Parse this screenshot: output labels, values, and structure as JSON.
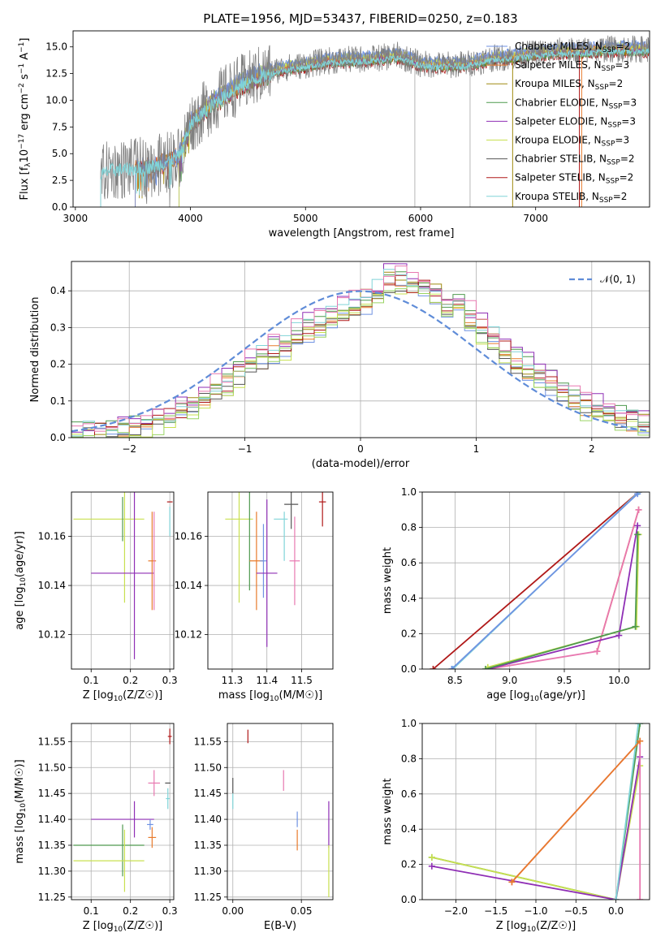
{
  "figure_title": "PLATE=1956, MJD=53437, FIBERID=0250, z=0.183",
  "colors": {
    "Chabrier MILES": "#6f92e2",
    "Salpeter MILES": "#e87b2c",
    "Kroupa MILES": "#a08a10",
    "Chabrier ELODIE": "#4f9a4f",
    "Salpeter ELODIE": "#8f2fb5",
    "Kroupa ELODIE": "#c8e050",
    "Chabrier STELIB": "#555555",
    "Salpeter STELIB": "#b01818",
    "Kroupa STELIB": "#80d4d8",
    "extra1": "#e878b0",
    "extra2": "#9ad464",
    "data": "#808080",
    "gauss": "#5f8cd8"
  },
  "chart_data": [
    {
      "id": "spectrum",
      "type": "line",
      "xlabel": "wavelength [Angstrom, rest frame]",
      "ylabel": "Flux [f",
      "ylabel_full": "Flux [f_λ 10^-17 erg cm^-2 s^-1 A^-1]",
      "xlim": [
        2980,
        7990
      ],
      "ylim": [
        0,
        16.5
      ],
      "xticks": [
        3000,
        4000,
        5000,
        6000,
        7000
      ],
      "yticks": [
        0.0,
        2.5,
        5.0,
        7.5,
        10.0,
        12.5,
        15.0
      ],
      "ytick_labels": [
        "0.0",
        "2.5",
        "5.0",
        "7.5",
        "10.0",
        "12.5",
        "15.0"
      ],
      "spectrum_knots_x": [
        3220,
        3300,
        3500,
        3700,
        3900,
        4000,
        4200,
        4400,
        4600,
        4800,
        5000,
        5200,
        5400,
        5600,
        5800,
        6000,
        6200,
        6400,
        6600,
        6800,
        7000,
        7200,
        7400,
        7600
      ],
      "spectrum_knots_y": [
        3.0,
        3.5,
        3.6,
        3.9,
        4.8,
        7.8,
        9.8,
        11.3,
        12.3,
        13.0,
        13.3,
        13.7,
        13.8,
        13.9,
        14.2,
        13.4,
        13.3,
        13.4,
        13.9,
        14.1,
        14.4,
        14.6,
        14.6,
        14.8
      ],
      "legend_position": "upper right",
      "legend": [
        {
          "label": "Chabrier MILES, N",
          "sub": "SSP",
          "post": "=2",
          "color": "Chabrier MILES"
        },
        {
          "label": "Salpeter MILES, N",
          "sub": "SSP",
          "post": "=3",
          "color": "Salpeter MILES"
        },
        {
          "label": "Kroupa MILES, N",
          "sub": "SSP",
          "post": "=2",
          "color": "Kroupa MILES"
        },
        {
          "label": "Chabrier ELODIE, N",
          "sub": "SSP",
          "post": "=3",
          "color": "Chabrier ELODIE"
        },
        {
          "label": "Salpeter ELODIE, N",
          "sub": "SSP",
          "post": "=3",
          "color": "Salpeter ELODIE"
        },
        {
          "label": "Kroupa ELODIE, N",
          "sub": "SSP",
          "post": "=3",
          "color": "Kroupa ELODIE"
        },
        {
          "label": "Chabrier STELIB, N",
          "sub": "SSP",
          "post": "=2",
          "color": "Chabrier STELIB"
        },
        {
          "label": "Salpeter STELIB, N",
          "sub": "SSP",
          "post": "=2",
          "color": "Salpeter STELIB"
        },
        {
          "label": "Kroupa STELIB, N",
          "sub": "SSP",
          "post": "=2",
          "color": "Kroupa STELIB"
        }
      ]
    },
    {
      "id": "residuals",
      "type": "line",
      "xlabel": "(data-model)/error",
      "ylabel": "Normed distribution",
      "xlim": [
        -2.5,
        2.5
      ],
      "ylim": [
        0,
        0.48
      ],
      "xticks": [
        -2,
        -1,
        0,
        1,
        2
      ],
      "xtick_labels": [
        "−2",
        "−1",
        "0",
        "1",
        "2"
      ],
      "yticks": [
        0.0,
        0.1,
        0.2,
        0.3,
        0.4
      ],
      "ytick_labels": [
        "0.0",
        "0.1",
        "0.2",
        "0.3",
        "0.4"
      ],
      "grid": true,
      "legend_label": "𝒩(0, 1)",
      "bin_width": 0.1,
      "base_centers": [
        -2.45,
        -2.35,
        -2.25,
        -2.15,
        -2.05,
        -1.95,
        -1.85,
        -1.75,
        -1.65,
        -1.55,
        -1.45,
        -1.35,
        -1.25,
        -1.15,
        -1.05,
        -0.95,
        -0.85,
        -0.75,
        -0.65,
        -0.55,
        -0.45,
        -0.35,
        -0.25,
        -0.15,
        -0.05,
        0.05,
        0.15,
        0.25,
        0.35,
        0.45,
        0.55,
        0.65,
        0.75,
        0.85,
        0.95,
        1.05,
        1.15,
        1.25,
        1.35,
        1.45,
        1.55,
        1.65,
        1.75,
        1.85,
        1.95,
        2.05,
        2.15,
        2.25,
        2.35,
        2.45
      ],
      "base_values": [
        0.01,
        0.012,
        0.015,
        0.02,
        0.03,
        0.035,
        0.04,
        0.05,
        0.055,
        0.07,
        0.09,
        0.11,
        0.13,
        0.15,
        0.18,
        0.21,
        0.22,
        0.24,
        0.25,
        0.28,
        0.3,
        0.31,
        0.33,
        0.34,
        0.36,
        0.38,
        0.4,
        0.41,
        0.41,
        0.4,
        0.39,
        0.38,
        0.37,
        0.36,
        0.33,
        0.3,
        0.27,
        0.24,
        0.21,
        0.19,
        0.17,
        0.15,
        0.12,
        0.1,
        0.09,
        0.08,
        0.07,
        0.06,
        0.05,
        0.04
      ]
    },
    {
      "id": "age_vs_Z",
      "type": "scatter",
      "xlabel": "Z [log",
      "ylabel": "age  [log",
      "xlim": [
        0.05,
        0.31
      ],
      "ylim": [
        10.106,
        10.178
      ],
      "xticks": [
        0.1,
        0.2,
        0.3
      ],
      "xtick_labels": [
        "0.1",
        "0.2",
        "0.3"
      ],
      "yticks": [
        10.12,
        10.14,
        10.16
      ],
      "ytick_labels": [
        "10.12",
        "10.14",
        "10.16"
      ],
      "points": [
        {
          "x": 0.145,
          "y": 10.167,
          "xerr": 0.09,
          "yerr": 0.0,
          "color": "Kroupa ELODIE"
        },
        {
          "x": 0.18,
          "y": 10.167,
          "xerr": 0.0,
          "yerr": 0.009,
          "color": "Chabrier ELODIE"
        },
        {
          "x": 0.185,
          "y": 10.158,
          "xerr": 0.0,
          "yerr": 0.025,
          "color": "Kroupa ELODIE"
        },
        {
          "x": 0.18,
          "y": 10.145,
          "xerr": 0.08,
          "yerr": 0.0,
          "color": "Salpeter ELODIE"
        },
        {
          "x": 0.21,
          "y": 10.145,
          "xerr": 0.0,
          "yerr": 0.035,
          "color": "Salpeter ELODIE"
        },
        {
          "x": 0.255,
          "y": 10.15,
          "xerr": 0.01,
          "yerr": 0.02,
          "color": "Salpeter MILES"
        },
        {
          "x": 0.26,
          "y": 10.15,
          "xerr": 0.0,
          "yerr": 0.02,
          "color": "extra1"
        },
        {
          "x": 0.3,
          "y": 10.174,
          "xerr": 0.007,
          "yerr": 0.0,
          "color": "Salpeter STELIB"
        },
        {
          "x": 0.3,
          "y": 10.166,
          "xerr": 0.0,
          "yerr": 0.006,
          "color": "Kroupa STELIB"
        }
      ]
    },
    {
      "id": "age_vs_mass",
      "type": "scatter",
      "xlabel": "mass [log",
      "ylabel": "",
      "xlim": [
        11.23,
        11.59
      ],
      "ylim": [
        10.106,
        10.178
      ],
      "xticks": [
        11.3,
        11.4,
        11.5
      ],
      "xtick_labels": [
        "11.3",
        "11.4",
        "11.5"
      ],
      "yticks": [
        10.12,
        10.14,
        10.16
      ],
      "ytick_labels": [
        "10.12",
        "10.14",
        "10.16"
      ],
      "points": [
        {
          "x": 11.32,
          "y": 10.167,
          "xerr": 0.04,
          "yerr": 0.0,
          "color": "Kroupa ELODIE"
        },
        {
          "x": 11.32,
          "y": 10.158,
          "xerr": 0.0,
          "yerr": 0.025,
          "color": "Kroupa ELODIE"
        },
        {
          "x": 11.35,
          "y": 10.158,
          "xerr": 0.0,
          "yerr": 0.02,
          "color": "Chabrier ELODIE"
        },
        {
          "x": 11.37,
          "y": 10.15,
          "xerr": 0.02,
          "yerr": 0.02,
          "color": "Salpeter MILES"
        },
        {
          "x": 11.39,
          "y": 10.15,
          "xerr": 0.01,
          "yerr": 0.015,
          "color": "Chabrier MILES"
        },
        {
          "x": 11.4,
          "y": 10.145,
          "xerr": 0.03,
          "yerr": 0.03,
          "color": "Salpeter ELODIE"
        },
        {
          "x": 11.44,
          "y": 10.167,
          "xerr": 0.02,
          "yerr": 0.0,
          "color": "Kroupa STELIB"
        },
        {
          "x": 11.47,
          "y": 10.173,
          "xerr": 0.02,
          "yerr": 0.01,
          "color": "Chabrier STELIB"
        },
        {
          "x": 11.48,
          "y": 10.15,
          "xerr": 0.015,
          "yerr": 0.018,
          "color": "extra1"
        },
        {
          "x": 11.56,
          "y": 10.174,
          "xerr": 0.01,
          "yerr": 0.01,
          "color": "Salpeter STELIB"
        },
        {
          "x": 11.45,
          "y": 10.16,
          "xerr": 0.0,
          "yerr": 0.01,
          "color": "Kroupa STELIB"
        }
      ]
    },
    {
      "id": "mass_weight_vs_age",
      "type": "line",
      "xlabel": "age  [log",
      "ylabel": "mass weight",
      "xlim": [
        8.2,
        10.28
      ],
      "ylim": [
        0,
        1.0
      ],
      "xticks": [
        8.5,
        9.0,
        9.5,
        10.0
      ],
      "xtick_labels": [
        "8.5",
        "9.0",
        "9.5",
        "10.0"
      ],
      "yticks": [
        0.0,
        0.2,
        0.4,
        0.6,
        0.8,
        1.0
      ],
      "ytick_labels": [
        "0.0",
        "0.2",
        "0.4",
        "0.6",
        "0.8",
        "1.0"
      ],
      "grid": true,
      "series": [
        {
          "color": "Salpeter STELIB",
          "x": [
            8.3,
            10.18
          ],
          "y": [
            0.0,
            1.0
          ]
        },
        {
          "color": "Kroupa STELIB",
          "x": [
            8.48,
            10.18
          ],
          "y": [
            0.0,
            1.0
          ]
        },
        {
          "color": "Chabrier MILES",
          "x": [
            8.47,
            10.17
          ],
          "y": [
            0.0,
            0.99
          ]
        },
        {
          "color": "Salpeter MILES",
          "x": [
            9.8,
            10.18
          ],
          "y": [
            0.1,
            0.9
          ]
        },
        {
          "color": "extra1",
          "x": [
            8.8,
            9.8,
            10.18
          ],
          "y": [
            0.0,
            0.1,
            0.9
          ]
        },
        {
          "color": "Salpeter ELODIE",
          "x": [
            8.8,
            10.0,
            10.17
          ],
          "y": [
            0.0,
            0.19,
            0.81
          ]
        },
        {
          "color": "Kroupa ELODIE",
          "x": [
            8.8,
            10.16,
            10.18
          ],
          "y": [
            0.01,
            0.24,
            0.76
          ]
        },
        {
          "color": "Chabrier ELODIE",
          "x": [
            8.78,
            10.15,
            10.17
          ],
          "y": [
            0.0,
            0.24,
            0.76
          ]
        }
      ]
    },
    {
      "id": "mass_vs_Z",
      "type": "scatter",
      "xlabel": "Z [log",
      "ylabel": "mass [log",
      "xlim": [
        0.05,
        0.31
      ],
      "ylim": [
        11.245,
        11.585
      ],
      "xticks": [
        0.1,
        0.2,
        0.3
      ],
      "xtick_labels": [
        "0.1",
        "0.2",
        "0.3"
      ],
      "yticks": [
        11.25,
        11.3,
        11.35,
        11.4,
        11.45,
        11.5,
        11.55
      ],
      "ytick_labels": [
        "11.25",
        "11.30",
        "11.35",
        "11.40",
        "11.45",
        "11.50",
        "11.55"
      ],
      "points": [
        {
          "x": 0.145,
          "y": 11.35,
          "xerr": 0.09,
          "yerr": 0.0,
          "color": "Chabrier ELODIE"
        },
        {
          "x": 0.18,
          "y": 11.34,
          "xerr": 0.0,
          "yerr": 0.05,
          "color": "Chabrier ELODIE"
        },
        {
          "x": 0.145,
          "y": 11.32,
          "xerr": 0.09,
          "yerr": 0.0,
          "color": "Kroupa ELODIE"
        },
        {
          "x": 0.185,
          "y": 11.32,
          "xerr": 0.0,
          "yerr": 0.06,
          "color": "Kroupa ELODIE"
        },
        {
          "x": 0.18,
          "y": 11.4,
          "xerr": 0.08,
          "yerr": 0.0,
          "color": "Salpeter ELODIE"
        },
        {
          "x": 0.21,
          "y": 11.4,
          "xerr": 0.0,
          "yerr": 0.035,
          "color": "Salpeter ELODIE"
        },
        {
          "x": 0.255,
          "y": 11.365,
          "xerr": 0.01,
          "yerr": 0.02,
          "color": "Salpeter MILES"
        },
        {
          "x": 0.25,
          "y": 11.39,
          "xerr": 0.008,
          "yerr": 0.01,
          "color": "Chabrier MILES"
        },
        {
          "x": 0.26,
          "y": 11.47,
          "xerr": 0.015,
          "yerr": 0.025,
          "color": "extra1"
        },
        {
          "x": 0.295,
          "y": 11.47,
          "xerr": 0.007,
          "yerr": 0.0,
          "color": "Chabrier STELIB"
        },
        {
          "x": 0.295,
          "y": 11.44,
          "xerr": 0.005,
          "yerr": 0.02,
          "color": "Kroupa STELIB"
        },
        {
          "x": 0.3,
          "y": 11.56,
          "xerr": 0.005,
          "yerr": 0.015,
          "color": "Salpeter STELIB"
        }
      ]
    },
    {
      "id": "mass_vs_ebv",
      "type": "scatter",
      "xlabel": "E(B-V)",
      "ylabel": "",
      "xlim": [
        -0.004,
        0.073
      ],
      "ylim": [
        11.245,
        11.585
      ],
      "xticks": [
        0.0,
        0.05
      ],
      "xtick_labels": [
        "0.00",
        "0.05"
      ],
      "yticks": [
        11.25,
        11.3,
        11.35,
        11.4,
        11.45,
        11.5,
        11.55
      ],
      "ytick_labels": [
        "11.25",
        "11.30",
        "11.35",
        "11.40",
        "11.45",
        "11.50",
        "11.55"
      ],
      "points": [
        {
          "x": 0.0,
          "y": 11.465,
          "xerr": 0.0,
          "yerr": 0.015,
          "color": "Chabrier STELIB"
        },
        {
          "x": 0.0,
          "y": 11.435,
          "xerr": 0.0,
          "yerr": 0.015,
          "color": "Kroupa STELIB"
        },
        {
          "x": 0.011,
          "y": 11.56,
          "xerr": 0.0,
          "yerr": 0.013,
          "color": "Salpeter STELIB"
        },
        {
          "x": 0.037,
          "y": 11.475,
          "xerr": 0.0,
          "yerr": 0.02,
          "color": "extra1"
        },
        {
          "x": 0.047,
          "y": 11.4,
          "xerr": 0.0,
          "yerr": 0.015,
          "color": "Chabrier MILES"
        },
        {
          "x": 0.047,
          "y": 11.36,
          "xerr": 0.0,
          "yerr": 0.02,
          "color": "Salpeter MILES"
        },
        {
          "x": 0.07,
          "y": 11.39,
          "xerr": 0.0,
          "yerr": 0.045,
          "color": "Salpeter ELODIE"
        },
        {
          "x": 0.07,
          "y": 11.3,
          "xerr": 0.0,
          "yerr": 0.05,
          "color": "Kroupa ELODIE"
        }
      ]
    },
    {
      "id": "mass_weight_vs_Z",
      "type": "line",
      "xlabel": "Z [log",
      "ylabel": "mass weight",
      "xlim": [
        -2.42,
        0.42
      ],
      "ylim": [
        0,
        1.0
      ],
      "xticks": [
        -2.0,
        -1.5,
        -1.0,
        -0.5,
        0.0
      ],
      "xtick_labels": [
        "−2.0",
        "−1.5",
        "−1.0",
        "−0.5",
        "0.0"
      ],
      "yticks": [
        0.0,
        0.2,
        0.4,
        0.6,
        0.8,
        1.0
      ],
      "ytick_labels": [
        "0.0",
        "0.2",
        "0.4",
        "0.6",
        "0.8",
        "1.0"
      ],
      "grid": true,
      "series": [
        {
          "color": "Chabrier ELODIE",
          "x": [
            -2.3,
            0.0,
            0.3
          ],
          "y": [
            0.24,
            0.0,
            1.0
          ]
        },
        {
          "color": "Kroupa ELODIE",
          "x": [
            -2.3,
            0.0,
            0.3
          ],
          "y": [
            0.24,
            0.0,
            0.76
          ]
        },
        {
          "color": "Salpeter ELODIE",
          "x": [
            -2.3,
            0.0,
            0.3
          ],
          "y": [
            0.19,
            0.0,
            0.81
          ]
        },
        {
          "color": "Kroupa STELIB",
          "x": [
            0.0,
            0.28
          ],
          "y": [
            0.0,
            1.0
          ]
        },
        {
          "color": "extra1",
          "x": [
            -1.3,
            0.3,
            0.3
          ],
          "y": [
            0.1,
            0.9,
            0.0
          ]
        },
        {
          "color": "Salpeter MILES",
          "x": [
            -1.3,
            0.3
          ],
          "y": [
            0.1,
            0.9
          ]
        }
      ]
    }
  ]
}
